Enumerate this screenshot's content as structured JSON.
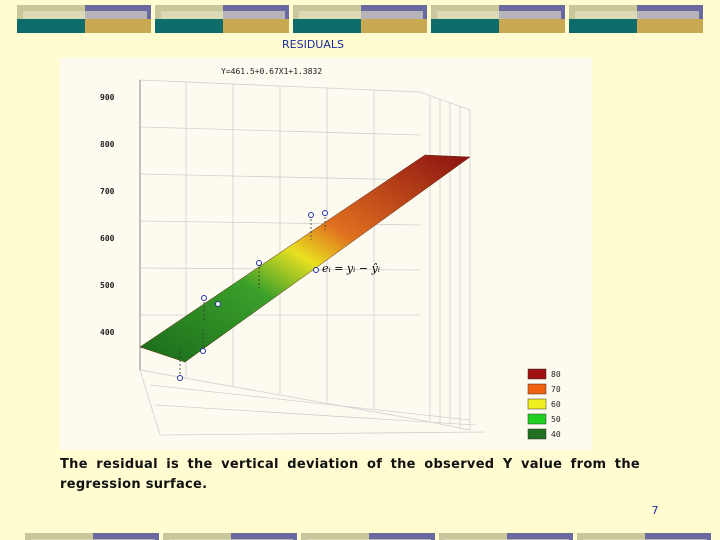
{
  "header": {
    "title": "RESIDUALS"
  },
  "figure": {
    "equation": "Y=461.5+0.67X1+1.3832",
    "formula": "eᵢ = yᵢ − ŷᵢ",
    "axis_labels": [
      "900",
      "800",
      "700",
      "600",
      "500",
      "400"
    ],
    "legend": [
      "80",
      "70",
      "60",
      "50",
      "40"
    ]
  },
  "body": {
    "text": "The residual is the vertical deviation of the observed Y value from the regression surface."
  },
  "footer": {
    "page": "7"
  }
}
